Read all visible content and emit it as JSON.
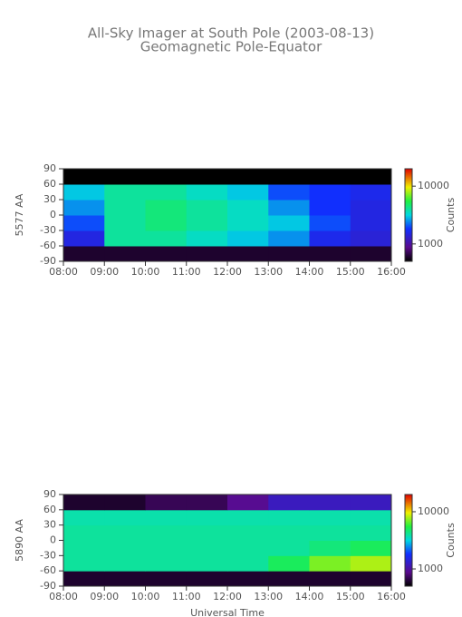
{
  "chart_data": [
    {
      "type": "heatmap",
      "title": "All-Sky Imager at South Pole (2003-08-13)",
      "subtitle": "Geomagnetic Pole-Equator",
      "ylabel": "5577 AA",
      "zlabel": "Counts",
      "log_z": true,
      "xlim": [
        8,
        16
      ],
      "xticks": [
        {
          "value": 8,
          "label": "08:00"
        },
        {
          "value": 9,
          "label": "09:00"
        },
        {
          "value": 10,
          "label": "10:00"
        },
        {
          "value": 11,
          "label": "11:00"
        },
        {
          "value": 12,
          "label": "12:00"
        },
        {
          "value": 13,
          "label": "13:00"
        },
        {
          "value": 14,
          "label": "14:00"
        },
        {
          "value": 15,
          "label": "15:00"
        },
        {
          "value": 16,
          "label": "16:00"
        }
      ],
      "ylim": [
        -90,
        90
      ],
      "yticks": [
        -90,
        -60,
        -30,
        0,
        30,
        60,
        90
      ],
      "zlim": [
        500,
        20000
      ],
      "zticks": [
        1000,
        10000
      ],
      "xbins": [
        8,
        9,
        10,
        11,
        12,
        13,
        14,
        15,
        16
      ],
      "ybins": [
        -90,
        -60,
        -30,
        0,
        30,
        60,
        90
      ],
      "z": [
        [
          600,
          600,
          600,
          600,
          600,
          600,
          600,
          600
        ],
        [
          1500,
          4000,
          4000,
          3500,
          3000,
          2500,
          1600,
          1400
        ],
        [
          2000,
          4000,
          4500,
          4000,
          3500,
          3000,
          2000,
          1500
        ],
        [
          2500,
          4000,
          4500,
          4000,
          3500,
          2500,
          1800,
          1500
        ],
        [
          3000,
          4000,
          4000,
          3500,
          3000,
          2000,
          1800,
          1600
        ],
        [
          500,
          500,
          500,
          500,
          500,
          500,
          500,
          500
        ]
      ]
    },
    {
      "type": "heatmap",
      "ylabel": "5890 AA",
      "xlabel": "Universal Time",
      "zlabel": "Counts",
      "log_z": true,
      "xlim": [
        8,
        16
      ],
      "xticks": [
        {
          "value": 8,
          "label": "08:00"
        },
        {
          "value": 9,
          "label": "09:00"
        },
        {
          "value": 10,
          "label": "10:00"
        },
        {
          "value": 11,
          "label": "11:00"
        },
        {
          "value": 12,
          "label": "12:00"
        },
        {
          "value": 13,
          "label": "13:00"
        },
        {
          "value": 14,
          "label": "14:00"
        },
        {
          "value": 15,
          "label": "15:00"
        },
        {
          "value": 16,
          "label": "16:00"
        }
      ],
      "ylim": [
        -90,
        90
      ],
      "yticks": [
        -90,
        -60,
        -30,
        0,
        30,
        60,
        90
      ],
      "zlim": [
        500,
        20000
      ],
      "zticks": [
        1000,
        10000
      ],
      "xbins": [
        8,
        9,
        10,
        11,
        12,
        13,
        14,
        15,
        16
      ],
      "ybins": [
        -90,
        -60,
        -30,
        0,
        30,
        60,
        90
      ],
      "z": [
        [
          600,
          600,
          600,
          600,
          600,
          600,
          600,
          600
        ],
        [
          4000,
          4000,
          4000,
          4000,
          4000,
          5000,
          7000,
          8000
        ],
        [
          4000,
          4000,
          4000,
          4000,
          4000,
          4000,
          4500,
          5000
        ],
        [
          4000,
          4000,
          4000,
          4000,
          4000,
          4000,
          4000,
          4000
        ],
        [
          3800,
          3800,
          3800,
          3800,
          3800,
          3800,
          3800,
          3800
        ],
        [
          600,
          600,
          700,
          700,
          900,
          1200,
          1200,
          1200
        ]
      ]
    }
  ]
}
